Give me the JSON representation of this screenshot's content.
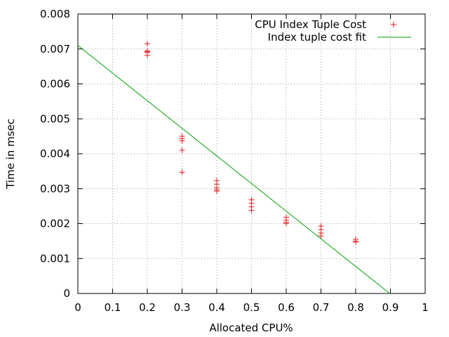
{
  "chart_data": {
    "type": "scatter",
    "title": "",
    "xlabel": "Allocated CPU%",
    "ylabel": "Time in msec",
    "xlim": [
      0,
      1
    ],
    "ylim": [
      0,
      0.008
    ],
    "x_ticks": [
      0,
      0.1,
      0.2,
      0.3,
      0.4,
      0.5,
      0.6,
      0.7,
      0.8,
      0.9,
      1
    ],
    "x_tick_labels": [
      "0",
      "0.1",
      "0.2",
      "0.3",
      "0.4",
      "0.5",
      "0.6",
      "0.7",
      "0.8",
      "0.9",
      "1"
    ],
    "y_ticks": [
      0,
      0.001,
      0.002,
      0.003,
      0.004,
      0.005,
      0.006,
      0.007,
      0.008
    ],
    "y_tick_labels": [
      "0",
      "0.001",
      "0.002",
      "0.003",
      "0.004",
      "0.005",
      "0.006",
      "0.007",
      "0.008"
    ],
    "grid": true,
    "legend_position": "top-right",
    "series": [
      {
        "name": "CPU Index Tuple Cost",
        "kind": "points",
        "marker": "plus",
        "color": "#e41a1c",
        "points": [
          [
            0.2,
            0.00715
          ],
          [
            0.2,
            0.00695
          ],
          [
            0.2,
            0.00692
          ],
          [
            0.2,
            0.0069
          ],
          [
            0.2,
            0.00682
          ],
          [
            0.3,
            0.0045
          ],
          [
            0.3,
            0.00443
          ],
          [
            0.3,
            0.00437
          ],
          [
            0.3,
            0.0041
          ],
          [
            0.3,
            0.00347
          ],
          [
            0.4,
            0.00323
          ],
          [
            0.4,
            0.00313
          ],
          [
            0.4,
            0.00303
          ],
          [
            0.4,
            0.00297
          ],
          [
            0.4,
            0.00293
          ],
          [
            0.5,
            0.00268
          ],
          [
            0.5,
            0.00258
          ],
          [
            0.5,
            0.00248
          ],
          [
            0.5,
            0.00238
          ],
          [
            0.6,
            0.00218
          ],
          [
            0.6,
            0.0021
          ],
          [
            0.6,
            0.00204
          ],
          [
            0.6,
            0.002
          ],
          [
            0.7,
            0.00193
          ],
          [
            0.7,
            0.00183
          ],
          [
            0.7,
            0.00173
          ],
          [
            0.7,
            0.00165
          ],
          [
            0.8,
            0.00155
          ],
          [
            0.8,
            0.0015
          ],
          [
            0.8,
            0.00147
          ]
        ]
      },
      {
        "name": "Index tuple cost fit",
        "kind": "line",
        "color": "#00a000",
        "points": [
          [
            0,
            0.0071
          ],
          [
            0.898,
            0
          ]
        ]
      }
    ]
  }
}
